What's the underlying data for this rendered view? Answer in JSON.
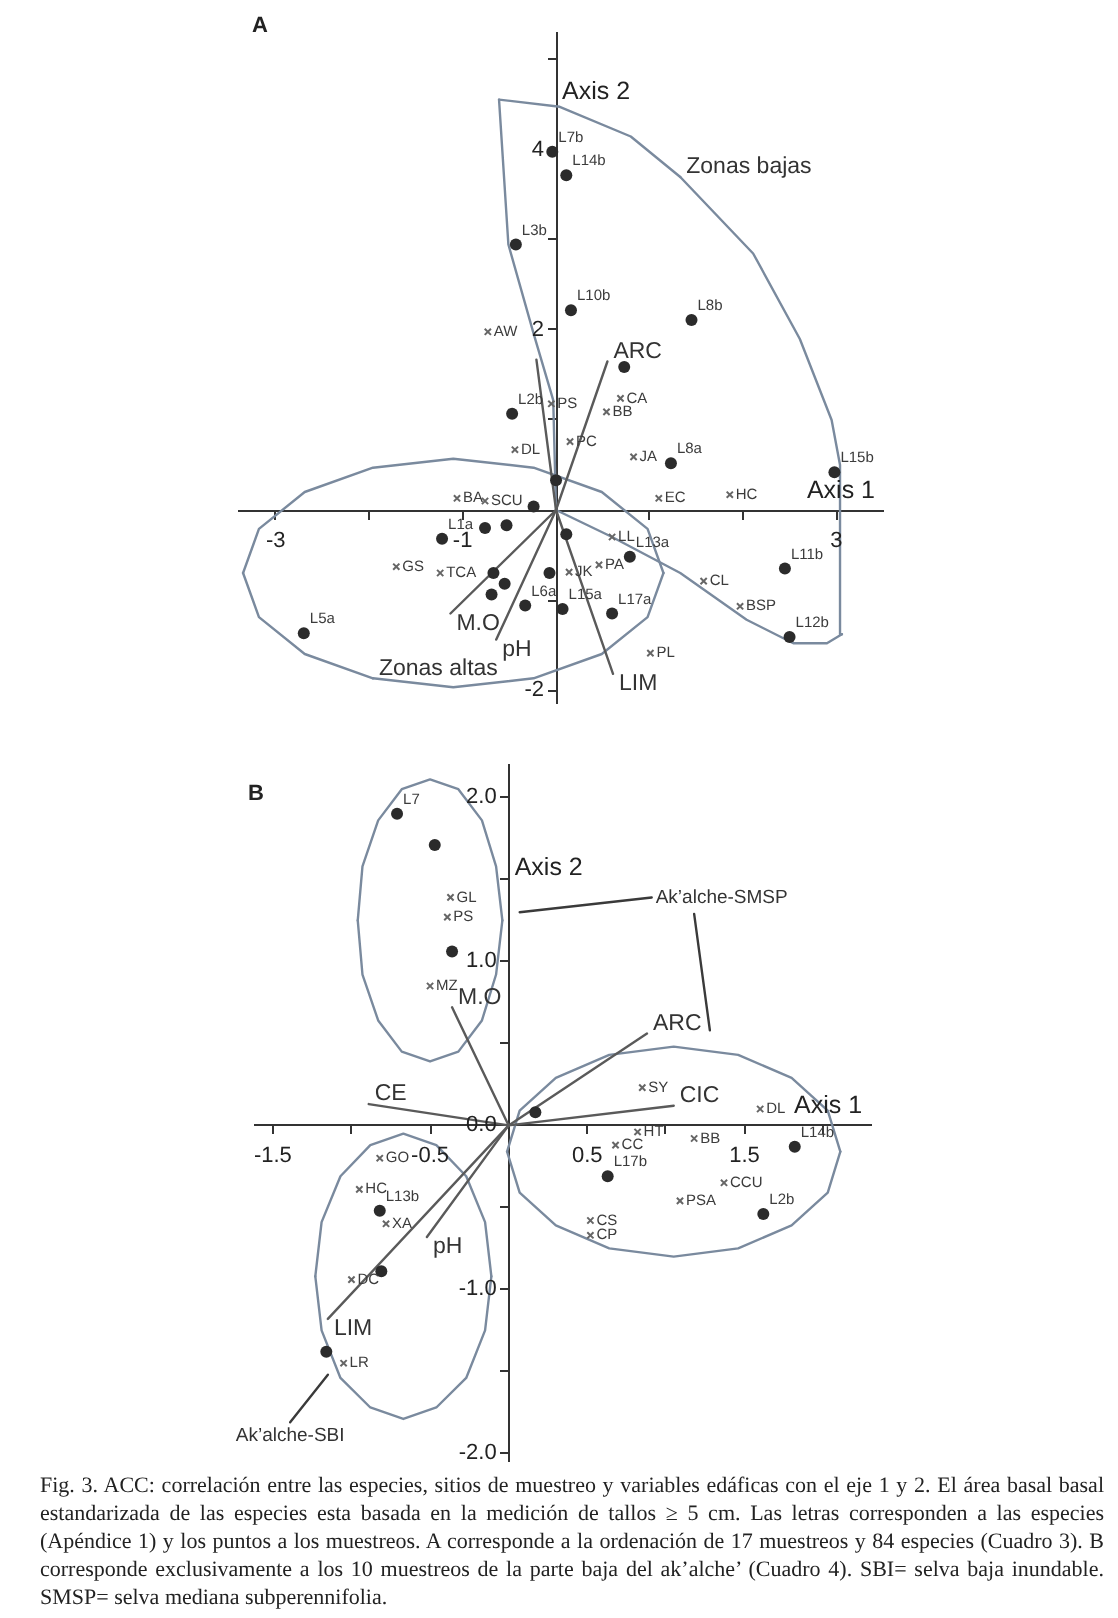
{
  "chart_data": [
    {
      "type": "scatter",
      "title": "A",
      "xlabel": "Axis 1",
      "ylabel": "Axis 2",
      "xlim": [
        -3.4,
        3.5
      ],
      "ylim": [
        -2.15,
        5.3
      ],
      "xticks": [
        -3,
        {
          "value": -2,
          "label": null
        },
        -1,
        {
          "value": 0,
          "label": null
        },
        {
          "value": 1,
          "label": null
        },
        {
          "value": 2,
          "label": null
        },
        3
      ],
      "yticks": [
        -2,
        {
          "value": -1,
          "label": null
        },
        {
          "value": 0,
          "label": null
        },
        {
          "value": 1,
          "label": null
        },
        2,
        {
          "value": 3,
          "label": null
        },
        4,
        {
          "value": 5,
          "label": null
        }
      ],
      "series": [
        {
          "type": "scatter",
          "marker": "circle",
          "color": "#2b2b2b",
          "x": [
            -0.04,
            0.11,
            -0.43,
            0.16,
            1.45,
            0.73,
            -0.47,
            1.23,
            2.98,
            0,
            -0.76,
            -0.53,
            -1.22,
            0.79,
            2.45,
            2.5,
            0.6,
            0.07,
            -0.33,
            -0.07,
            -2.7,
            -0.67,
            -0.55,
            -0.69,
            0.11,
            -0.24
          ],
          "values": [
            3.98,
            3.72,
            2.95,
            2.22,
            2.11,
            1.59,
            1.07,
            0.52,
            0.42,
            0.33,
            -0.2,
            -0.17,
            -0.32,
            -0.52,
            -0.65,
            -1.41,
            -1.15,
            -1.1,
            -1.06,
            -0.7,
            -1.37,
            -0.7,
            -0.82,
            -0.94,
            -0.27,
            0.04
          ]
        },
        {
          "type": "scatter",
          "marker": "cross",
          "color": "#666666",
          "x": [
            -0.73,
            0.69,
            0.54,
            -0.05,
            0.15,
            -0.44,
            0.83,
            1.1,
            1.86,
            -1.06,
            -0.76,
            -1.71,
            -1.24,
            0.46,
            0.6,
            0.14,
            1.58,
            1.97,
            1.01
          ],
          "values": [
            1.98,
            1.24,
            1.09,
            1.18,
            0.76,
            0.67,
            0.59,
            0.13,
            0.17,
            0.13,
            0.1,
            -0.63,
            -0.7,
            -0.61,
            -0.3,
            -0.69,
            -0.79,
            -1.07,
            -1.59
          ]
        },
        {
          "type": "line",
          "name": "ARC",
          "marker": "none",
          "color": "#5a5a5a",
          "x": [
            0,
            0.55
          ],
          "values": [
            0,
            1.65
          ]
        },
        {
          "type": "line",
          "name": "LIM",
          "marker": "none",
          "color": "#5a5a5a",
          "x": [
            -0.21,
            0,
            0.61
          ],
          "values": [
            1.67,
            0,
            -1.82
          ]
        },
        {
          "type": "line",
          "name": "pH",
          "marker": "none",
          "color": "#5a5a5a",
          "x": [
            0,
            -0.64
          ],
          "values": [
            0,
            -1.44
          ]
        },
        {
          "type": "line",
          "name": "M.O",
          "marker": "none",
          "color": "#5a5a5a",
          "x": [
            0,
            -1.13
          ],
          "values": [
            0,
            -1.15
          ]
        },
        {
          "type": "line",
          "name": "Zonas bajas",
          "marker": "none",
          "color": "#7a8a9e",
          "x": [
            3.06,
            3.04,
            2.95,
            2.61,
            2.11,
            1.33
          ],
          "values": [
            -1.38,
            0.5,
            1.0,
            1.9,
            2.85,
            3.7
          ]
        },
        {
          "type": "line",
          "marker": "none",
          "color": "#7a8a9e",
          "x": [
            -0.61,
            0.04,
            0.8,
            1.33
          ],
          "values": [
            4.56,
            4.48,
            4.15,
            3.7
          ]
        },
        {
          "type": "line",
          "marker": "none",
          "color": "#7a8a9e",
          "x": [
            0,
            -0.03,
            -0.24,
            -0.51,
            -0.61
          ],
          "values": [
            0,
            1.22,
            1.96,
            2.95,
            4.56
          ]
        },
        {
          "type": "line",
          "marker": "none",
          "color": "#7a8a9e",
          "x": [
            0,
            0.6,
            1.33,
            2.04,
            2.54,
            2.9,
            3.06
          ],
          "values": [
            0,
            -0.3,
            -0.7,
            -1.22,
            -1.48,
            -1.48,
            -1.38
          ]
        },
        {
          "type": "line",
          "name": "Zonas altas",
          "marker": "none",
          "color": "#7a8a9e",
          "x": [
            1.15,
            0.98,
            0.49,
            -0.24,
            -1.1,
            -1.96
          ],
          "values": [
            -0.7,
            -1.19,
            -1.6,
            -1.87,
            -1.97,
            -1.87
          ]
        },
        {
          "type": "line",
          "marker": "none",
          "color": "#7a8a9e",
          "x": [
            -1.96,
            -2.69,
            -3.18,
            -3.35
          ],
          "values": [
            -1.87,
            -1.6,
            -1.19,
            -0.7
          ]
        },
        {
          "type": "line",
          "marker": "none",
          "color": "#7a8a9e",
          "x": [
            -3.35,
            -3.18,
            -2.69,
            -1.96,
            -1.1,
            -0.24,
            0.49,
            0.98,
            1.15
          ],
          "values": [
            -0.7,
            -0.21,
            0.2,
            0.47,
            0.57,
            0.47,
            0.2,
            -0.21,
            -0.7
          ]
        }
      ],
      "annotations": [
        {
          "text": "L7b",
          "x": -0.04,
          "y": 3.98
        },
        {
          "text": "L14b",
          "x": 0.11,
          "y": 3.72
        },
        {
          "text": "L3b",
          "x": -0.43,
          "y": 2.95
        },
        {
          "text": "L10b",
          "x": 0.16,
          "y": 2.22
        },
        {
          "text": "L8b",
          "x": 1.45,
          "y": 2.11
        },
        {
          "text": "L2b",
          "x": -0.47,
          "y": 1.07
        },
        {
          "text": "L8a",
          "x": 1.23,
          "y": 0.52
        },
        {
          "text": "L15b",
          "x": 2.98,
          "y": 0.42
        },
        {
          "text": "L1a",
          "x": -1.22,
          "y": -0.32
        },
        {
          "text": "L13a",
          "x": 0.79,
          "y": -0.52
        },
        {
          "text": "L11b",
          "x": 2.45,
          "y": -0.65
        },
        {
          "text": "L12b",
          "x": 2.5,
          "y": -1.41
        },
        {
          "text": "L17a",
          "x": 0.6,
          "y": -1.15
        },
        {
          "text": "L15a",
          "x": 0.07,
          "y": -1.1
        },
        {
          "text": "L6a",
          "x": -0.33,
          "y": -1.06
        },
        {
          "text": "L5a",
          "x": -2.7,
          "y": -1.37
        },
        {
          "text": "AW",
          "x": -0.73,
          "y": 1.98
        },
        {
          "text": "CA",
          "x": 0.69,
          "y": 1.24
        },
        {
          "text": "BB",
          "x": 0.54,
          "y": 1.09
        },
        {
          "text": "PS",
          "x": -0.05,
          "y": 1.18
        },
        {
          "text": "PC",
          "x": 0.15,
          "y": 0.76
        },
        {
          "text": "DL",
          "x": -0.44,
          "y": 0.67
        },
        {
          "text": "JA",
          "x": 0.83,
          "y": 0.59
        },
        {
          "text": "EC",
          "x": 1.1,
          "y": 0.13
        },
        {
          "text": "HC",
          "x": 1.86,
          "y": 0.17
        },
        {
          "text": "BA",
          "x": -1.06,
          "y": 0.13
        },
        {
          "text": "SCU",
          "x": -0.76,
          "y": 0.1
        },
        {
          "text": "GS",
          "x": -1.71,
          "y": -0.63
        },
        {
          "text": "TCA",
          "x": -1.24,
          "y": -0.7
        },
        {
          "text": "PA",
          "x": 0.46,
          "y": -0.61
        },
        {
          "text": "LL",
          "x": 0.6,
          "y": -0.3
        },
        {
          "text": "JK",
          "x": 0.14,
          "y": -0.69
        },
        {
          "text": "CL",
          "x": 1.58,
          "y": -0.79
        },
        {
          "text": "BSP",
          "x": 1.97,
          "y": -1.07
        },
        {
          "text": "PL",
          "x": 1.01,
          "y": -1.59
        }
      ]
    },
    {
      "type": "scatter",
      "title": "B",
      "xlabel": "Axis 1",
      "ylabel": "Axis 2",
      "xlim": [
        -1.62,
        2.3
      ],
      "ylim": [
        -2.05,
        2.2
      ],
      "xticks": [
        -1.5,
        {
          "value": -1,
          "label": null
        },
        -0.5,
        {
          "value": 0,
          "label": null
        },
        0.5,
        {
          "value": 1,
          "label": null
        },
        1.5,
        {
          "value": 2,
          "label": null
        }
      ],
      "yticks": [
        {
          "value": -2,
          "label": "-2.0"
        },
        {
          "value": -1.5,
          "label": null
        },
        {
          "value": -1,
          "label": "-1.0"
        },
        {
          "value": -0.5,
          "label": null
        },
        {
          "value": 0,
          "label": "0.0"
        },
        {
          "value": 0.5,
          "label": null
        },
        {
          "value": 1,
          "label": "1.0"
        },
        {
          "value": 1.5,
          "label": null
        },
        {
          "value": 2,
          "label": "2.0"
        }
      ],
      "series": [
        {
          "type": "scatter",
          "marker": "circle",
          "color": "#2b2b2b",
          "x": [
            -0.71,
            -0.47,
            -0.36,
            0.17,
            0.63,
            1.82,
            1.62,
            -0.82,
            -0.81,
            -1.16
          ],
          "values": [
            1.9,
            1.71,
            1.06,
            0.08,
            -0.31,
            -0.13,
            -0.54,
            -0.52,
            -0.89,
            -1.38
          ]
        },
        {
          "type": "scatter",
          "marker": "cross",
          "color": "#666666",
          "x": [
            -0.37,
            -0.39,
            -0.5,
            0.85,
            0.82,
            1.18,
            1.6,
            0.68,
            1.37,
            1.09,
            0.52,
            0.52,
            -0.82,
            -0.95,
            -0.78,
            -1.0,
            -1.05
          ],
          "values": [
            1.39,
            1.27,
            0.85,
            0.23,
            -0.04,
            -0.08,
            0.1,
            -0.12,
            -0.35,
            -0.46,
            -0.58,
            -0.67,
            -0.2,
            -0.39,
            -0.6,
            -0.94,
            -1.45
          ]
        },
        {
          "type": "line",
          "name": "M.O",
          "marker": "none",
          "color": "#5a5a5a",
          "x": [
            0,
            -0.36
          ],
          "values": [
            0,
            0.72
          ]
        },
        {
          "type": "line",
          "name": "ARC",
          "marker": "none",
          "color": "#5a5a5a",
          "x": [
            0,
            0.88
          ],
          "values": [
            0,
            0.56
          ]
        },
        {
          "type": "line",
          "name": "CIC",
          "marker": "none",
          "color": "#5a5a5a",
          "x": [
            0,
            1.05
          ],
          "values": [
            0,
            0.12
          ]
        },
        {
          "type": "line",
          "name": "CE",
          "marker": "none",
          "color": "#5a5a5a",
          "x": [
            0,
            -0.89
          ],
          "values": [
            0,
            0.13
          ]
        },
        {
          "type": "line",
          "name": "pH",
          "marker": "none",
          "color": "#5a5a5a",
          "x": [
            0,
            -0.52
          ],
          "values": [
            0,
            -0.68
          ]
        },
        {
          "type": "line",
          "name": "LIM",
          "marker": "none",
          "color": "#5a5a5a",
          "x": [
            0,
            -1.15
          ],
          "values": [
            0,
            -1.18
          ]
        },
        {
          "type": "line",
          "marker": "none",
          "color": "#7a8a9e",
          "x": [
            -0.04,
            -0.08,
            -0.17,
            -0.32,
            -0.5,
            -0.68,
            -0.83,
            -0.93,
            -0.96
          ],
          "values": [
            1.25,
            1.58,
            1.86,
            2.05,
            2.11,
            2.05,
            1.86,
            1.58,
            1.25
          ]
        },
        {
          "type": "line",
          "marker": "none",
          "color": "#7a8a9e",
          "x": [
            -0.96,
            -0.93,
            -0.83,
            -0.68,
            -0.5,
            -0.32,
            -0.17,
            -0.08,
            -0.04
          ],
          "values": [
            1.25,
            0.92,
            0.64,
            0.45,
            0.39,
            0.45,
            0.64,
            0.92,
            1.25
          ]
        },
        {
          "type": "line",
          "marker": "none",
          "color": "#7a8a9e",
          "x": [
            2.11,
            2.03,
            1.8,
            1.46,
            1.05,
            0.64,
            0.3,
            0.07,
            -0.01
          ],
          "values": [
            -0.16,
            0.09,
            0.29,
            0.43,
            0.48,
            0.43,
            0.29,
            0.09,
            -0.16
          ]
        },
        {
          "type": "line",
          "marker": "none",
          "color": "#7a8a9e",
          "x": [
            -0.01,
            0.07,
            0.3,
            0.64,
            1.05,
            1.46,
            1.8,
            2.03,
            2.11
          ],
          "values": [
            -0.16,
            -0.41,
            -0.61,
            -0.75,
            -0.8,
            -0.75,
            -0.61,
            -0.41,
            -0.16
          ]
        },
        {
          "type": "line",
          "marker": "none",
          "color": "#7a8a9e",
          "x": [
            -0.11,
            -0.15,
            -0.27,
            -0.46,
            -0.67,
            -0.88,
            -1.07,
            -1.19,
            -1.23
          ],
          "values": [
            -0.92,
            -0.59,
            -0.31,
            -0.12,
            -0.05,
            -0.12,
            -0.31,
            -0.59,
            -0.92
          ]
        },
        {
          "type": "line",
          "marker": "none",
          "color": "#7a8a9e",
          "x": [
            -1.23,
            -1.19,
            -1.07,
            -0.88,
            -0.67,
            -0.46,
            -0.27,
            -0.15,
            -0.11
          ],
          "values": [
            -0.92,
            -1.25,
            -1.54,
            -1.72,
            -1.79,
            -1.72,
            -1.54,
            -1.25,
            -0.92
          ]
        },
        {
          "type": "line",
          "marker": "none",
          "color": "#3a3a3a",
          "x": [
            0.91,
            0.07
          ],
          "values": [
            1.39,
            1.3
          ]
        },
        {
          "type": "line",
          "marker": "none",
          "color": "#3a3a3a",
          "x": [
            1.18,
            1.28
          ],
          "values": [
            1.29,
            0.58
          ]
        },
        {
          "type": "line",
          "marker": "none",
          "color": "#3a3a3a",
          "x": [
            -1.39,
            -1.15
          ],
          "values": [
            -1.81,
            -1.52
          ]
        }
      ],
      "annotations": [
        {
          "text": "L7",
          "x": -0.71,
          "y": 1.9
        },
        {
          "text": "L17b",
          "x": 0.63,
          "y": -0.31
        },
        {
          "text": "L14b",
          "x": 1.82,
          "y": -0.13
        },
        {
          "text": "L2b",
          "x": 1.62,
          "y": -0.54
        },
        {
          "text": "L13b",
          "x": -0.82,
          "y": -0.52
        },
        {
          "text": "GL",
          "x": -0.37,
          "y": 1.39
        },
        {
          "text": "PS",
          "x": -0.39,
          "y": 1.27
        },
        {
          "text": "MZ",
          "x": -0.5,
          "y": 0.85
        },
        {
          "text": "SY",
          "x": 0.85,
          "y": 0.23
        },
        {
          "text": "HT",
          "x": 0.82,
          "y": -0.04
        },
        {
          "text": "BB",
          "x": 1.18,
          "y": -0.08
        },
        {
          "text": "DL",
          "x": 1.6,
          "y": 0.1
        },
        {
          "text": "CC",
          "x": 0.68,
          "y": -0.12
        },
        {
          "text": "CCU",
          "x": 1.37,
          "y": -0.35
        },
        {
          "text": "PSA",
          "x": 1.09,
          "y": -0.46
        },
        {
          "text": "CS",
          "x": 0.52,
          "y": -0.58
        },
        {
          "text": "CP",
          "x": 0.52,
          "y": -0.67
        },
        {
          "text": "GO",
          "x": -0.82,
          "y": -0.2
        },
        {
          "text": "HC",
          "x": -0.95,
          "y": -0.39
        },
        {
          "text": "XA",
          "x": -0.78,
          "y": -0.6
        },
        {
          "text": "DC",
          "x": -1.0,
          "y": -0.94
        },
        {
          "text": "LR",
          "x": -1.05,
          "y": -1.45
        },
        {
          "text": "Ak’alche-SMSP",
          "x": 0.91,
          "y": 1.39
        },
        {
          "text": "Ak’alche-SBI",
          "x": -1.39,
          "y": -1.81
        },
        "Fig. 3. ACC: correlación entre las especies, sitios de muestreo y variables edáficas con el eje 1 y 2. El área basal basal estandarizada de las especies esta basada en la medición de tallos ≥ 5 cm. Las letras corresponden a las especies (Apéndice 1) y los puntos a los muestreos. A corresponde a la ordenación de 17 muestreos y 84 especies (Cuadro 3). B corresponde exclusivamente a los 10 muestreos de la parte baja del ak’alche’ (Cuadro 4). SBI= selva baja inundable. SMSP= selva mediana subperennifolia."
      ]
    }
  ]
}
